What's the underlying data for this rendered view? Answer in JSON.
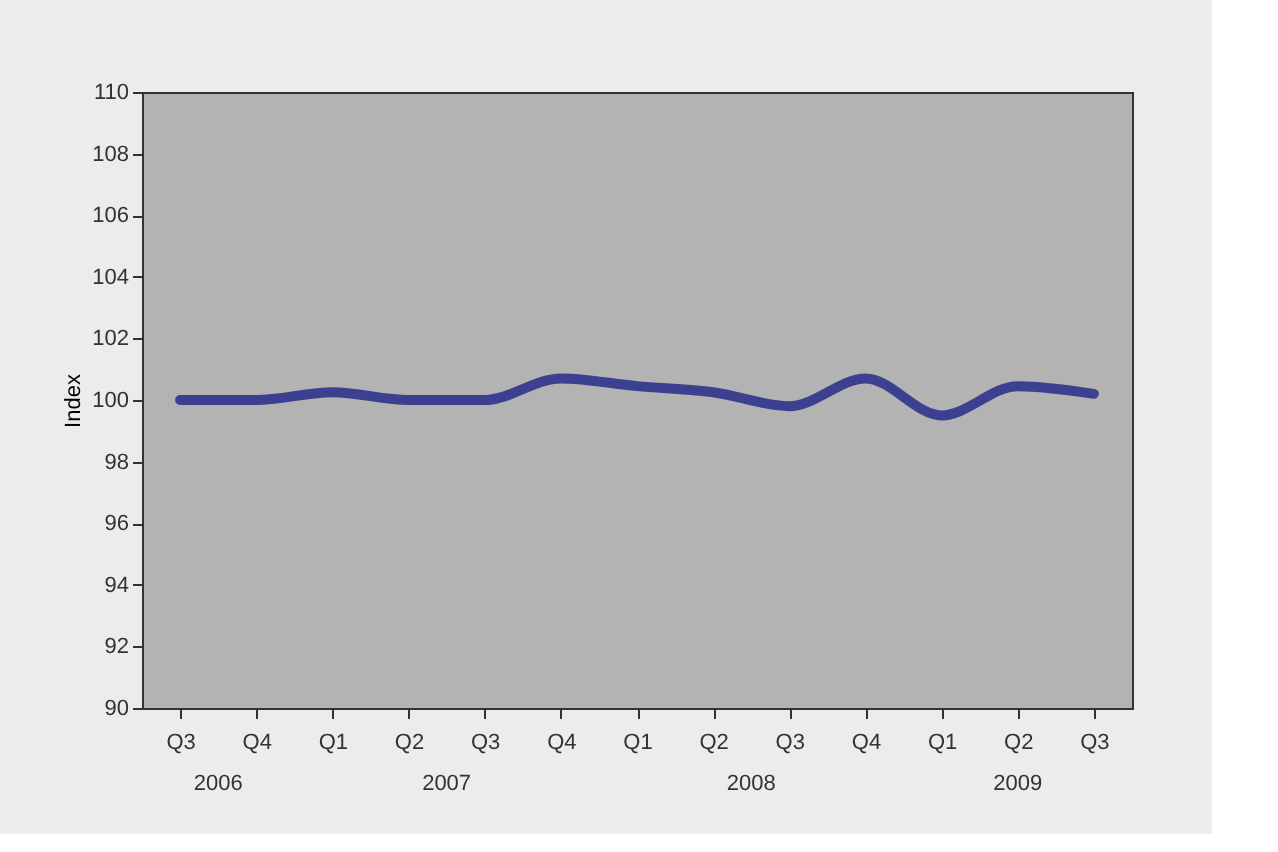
{
  "chart_data": {
    "type": "line",
    "ylabel": "Index",
    "categories": [
      "Q3",
      "Q4",
      "Q1",
      "Q2",
      "Q3",
      "Q4",
      "Q1",
      "Q2",
      "Q3",
      "Q4",
      "Q1",
      "Q2",
      "Q3"
    ],
    "series": [
      {
        "color": "#3b4190",
        "values": [
          100.0,
          100.0,
          100.25,
          100.0,
          100.0,
          100.7,
          100.45,
          100.25,
          99.8,
          100.7,
          99.5,
          100.45,
          100.2
        ]
      }
    ],
    "annotations": [
      "2006",
      "2007",
      "2008",
      "2009"
    ],
    "ylim": [
      90,
      110
    ],
    "yticks": [
      90,
      92,
      94,
      96,
      98,
      100,
      102,
      104,
      106,
      108,
      110
    ],
    "grid": false,
    "marker": "none",
    "line_style": "solid"
  }
}
